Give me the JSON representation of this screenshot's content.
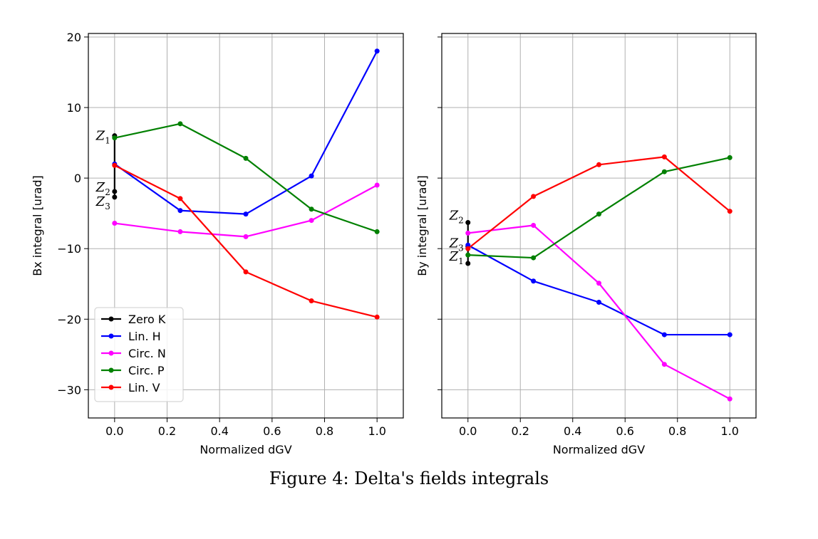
{
  "caption": "Figure 4: Delta's fields integrals",
  "chart_data": [
    {
      "type": "line",
      "xlabel": "Normalized dGV",
      "ylabel": "Bx integral [urad]",
      "xlim": [
        -0.1,
        1.1
      ],
      "ylim": [
        -34,
        20.5
      ],
      "xticks": [
        "0.0",
        "0.2",
        "0.4",
        "0.6",
        "0.8",
        "1.0"
      ],
      "yticks": [
        "20",
        "10",
        "0",
        "−10",
        "−20",
        "−30"
      ],
      "grid": true,
      "legend_position": "lower-left",
      "series": [
        {
          "name": "Zero K",
          "color": "#000000",
          "x": [
            0.0,
            0.0,
            0.0
          ],
          "y": [
            6.0,
            -1.9,
            -2.7
          ]
        },
        {
          "name": "Lin. H",
          "color": "#0000ff",
          "x": [
            0.0,
            0.25,
            0.5,
            0.75,
            1.0
          ],
          "y": [
            2.0,
            -4.6,
            -5.1,
            0.3,
            18.0
          ]
        },
        {
          "name": "Circ. N",
          "color": "#ff00ff",
          "x": [
            0.0,
            0.25,
            0.5,
            0.75,
            1.0
          ],
          "y": [
            -6.4,
            -7.6,
            -8.3,
            -6.0,
            -1.0
          ]
        },
        {
          "name": "Circ. P",
          "color": "#008000",
          "x": [
            0.0,
            0.25,
            0.5,
            0.75,
            1.0
          ],
          "y": [
            5.7,
            7.7,
            2.8,
            -4.4,
            -7.6
          ]
        },
        {
          "name": "Lin. V",
          "color": "#ff0000",
          "x": [
            0.0,
            0.25,
            0.5,
            0.75,
            1.0
          ],
          "y": [
            1.8,
            -2.9,
            -13.3,
            -17.4,
            -19.7
          ]
        }
      ],
      "annotations": [
        {
          "base": "Z",
          "sub": "1",
          "x": 0.0,
          "y": 6.0
        },
        {
          "base": "Z",
          "sub": "2",
          "x": 0.0,
          "y": -1.3
        },
        {
          "base": "Z",
          "sub": "3",
          "x": 0.0,
          "y": -3.3
        }
      ]
    },
    {
      "type": "line",
      "xlabel": "Normalized dGV",
      "ylabel": "By integral [urad]",
      "xlim": [
        -0.1,
        1.1
      ],
      "ylim": [
        -34,
        20.5
      ],
      "xticks": [
        "0.0",
        "0.2",
        "0.4",
        "0.6",
        "0.8",
        "1.0"
      ],
      "yticks": [],
      "grid": true,
      "series": [
        {
          "name": "Zero K",
          "color": "#000000",
          "x": [
            0.0,
            0.0,
            0.0
          ],
          "y": [
            -6.3,
            -9.7,
            -12.1
          ]
        },
        {
          "name": "Lin. H",
          "color": "#0000ff",
          "x": [
            0.0,
            0.25,
            0.5,
            0.75,
            1.0
          ],
          "y": [
            -9.5,
            -14.6,
            -17.6,
            -22.2,
            -22.2
          ]
        },
        {
          "name": "Circ. N",
          "color": "#ff00ff",
          "x": [
            0.0,
            0.25,
            0.5,
            0.75,
            1.0
          ],
          "y": [
            -7.8,
            -6.7,
            -14.9,
            -26.4,
            -31.3
          ]
        },
        {
          "name": "Circ. P",
          "color": "#008000",
          "x": [
            0.0,
            0.25,
            0.5,
            0.75,
            1.0
          ],
          "y": [
            -10.9,
            -11.3,
            -5.1,
            0.9,
            2.9
          ]
        },
        {
          "name": "Lin. V",
          "color": "#ff0000",
          "x": [
            0.0,
            0.25,
            0.5,
            0.75,
            1.0
          ],
          "y": [
            -10.0,
            -2.6,
            1.9,
            3.0,
            -4.7
          ]
        }
      ],
      "annotations": [
        {
          "base": "Z",
          "sub": "2",
          "x": 0.0,
          "y": -5.3
        },
        {
          "base": "Z",
          "sub": "3",
          "x": 0.0,
          "y": -9.2
        },
        {
          "base": "Z",
          "sub": "1",
          "x": 0.0,
          "y": -11.1
        }
      ]
    }
  ]
}
